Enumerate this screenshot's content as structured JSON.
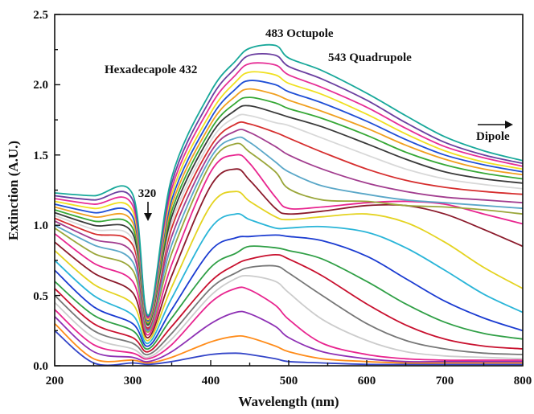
{
  "chart_data": {
    "type": "line",
    "xlabel": "Wavelength (nm)",
    "ylabel": "Extinction (A.U.)",
    "xlim": [
      200,
      800
    ],
    "ylim": [
      0,
      2.5
    ],
    "x_ticks": [
      "200",
      "300",
      "400",
      "500",
      "600",
      "700",
      "800"
    ],
    "y_ticks": [
      "0.0",
      "0.5",
      "1.0",
      "1.5",
      "2.0",
      "2.5"
    ],
    "grid": false,
    "legend": "none",
    "annotations": {
      "hexadecapole": "Hexadecapole 432",
      "octupole": "483 Octupole",
      "quadrupole": "543 Quadrupole",
      "dipole": "Dipole",
      "dip": "320"
    },
    "series_x": [
      200,
      250,
      300,
      320,
      350,
      400,
      432,
      450,
      483,
      500,
      543,
      600,
      650,
      700,
      750,
      800
    ],
    "series": [
      {
        "color": "#3345c8",
        "values": [
          0.25,
          0.02,
          0.02,
          0.01,
          0.03,
          0.08,
          0.09,
          0.08,
          0.05,
          0.03,
          0.02,
          0.01,
          0.01,
          0.01,
          0.01,
          0.01
        ]
      },
      {
        "color": "#ff8c1a",
        "values": [
          0.3,
          0.05,
          0.04,
          0.02,
          0.06,
          0.17,
          0.21,
          0.2,
          0.14,
          0.1,
          0.05,
          0.03,
          0.02,
          0.02,
          0.02,
          0.02
        ]
      },
      {
        "color": "#8e30b4",
        "values": [
          0.35,
          0.1,
          0.06,
          0.03,
          0.1,
          0.3,
          0.38,
          0.37,
          0.28,
          0.2,
          0.1,
          0.05,
          0.03,
          0.03,
          0.03,
          0.03
        ]
      },
      {
        "color": "#e8258f",
        "values": [
          0.4,
          0.15,
          0.09,
          0.05,
          0.15,
          0.45,
          0.55,
          0.54,
          0.43,
          0.33,
          0.16,
          0.08,
          0.05,
          0.04,
          0.04,
          0.04
        ]
      },
      {
        "color": "#cccccc",
        "values": [
          0.45,
          0.2,
          0.12,
          0.06,
          0.19,
          0.5,
          0.62,
          0.64,
          0.6,
          0.52,
          0.33,
          0.18,
          0.1,
          0.07,
          0.06,
          0.05
        ]
      },
      {
        "color": "#777777",
        "values": [
          0.5,
          0.25,
          0.16,
          0.08,
          0.23,
          0.55,
          0.66,
          0.7,
          0.71,
          0.66,
          0.5,
          0.3,
          0.18,
          0.12,
          0.09,
          0.08
        ]
      },
      {
        "color": "#c8102e",
        "values": [
          0.55,
          0.3,
          0.2,
          0.1,
          0.28,
          0.6,
          0.72,
          0.76,
          0.79,
          0.76,
          0.64,
          0.44,
          0.29,
          0.19,
          0.14,
          0.12
        ]
      },
      {
        "color": "#2f9f45",
        "values": [
          0.6,
          0.36,
          0.25,
          0.12,
          0.34,
          0.7,
          0.8,
          0.85,
          0.84,
          0.82,
          0.76,
          0.6,
          0.44,
          0.31,
          0.23,
          0.19
        ]
      },
      {
        "color": "#1a3bd1",
        "values": [
          0.68,
          0.42,
          0.3,
          0.14,
          0.4,
          0.82,
          0.91,
          0.92,
          0.93,
          0.92,
          0.89,
          0.78,
          0.62,
          0.46,
          0.34,
          0.25
        ]
      },
      {
        "color": "#2ab5d8",
        "values": [
          0.75,
          0.5,
          0.36,
          0.16,
          0.48,
          0.98,
          1.08,
          1.04,
          0.98,
          0.98,
          0.99,
          0.95,
          0.84,
          0.68,
          0.51,
          0.38
        ]
      },
      {
        "color": "#e4d320",
        "values": [
          0.82,
          0.58,
          0.44,
          0.18,
          0.56,
          1.14,
          1.24,
          1.17,
          1.06,
          1.04,
          1.06,
          1.08,
          1.02,
          0.88,
          0.7,
          0.55
        ]
      },
      {
        "color": "#8b1a2b",
        "values": [
          0.88,
          0.66,
          0.52,
          0.2,
          0.64,
          1.28,
          1.4,
          1.32,
          1.12,
          1.08,
          1.1,
          1.14,
          1.14,
          1.08,
          0.97,
          0.85
        ]
      },
      {
        "color": "#e8258f",
        "values": [
          0.94,
          0.73,
          0.6,
          0.22,
          0.72,
          1.38,
          1.5,
          1.44,
          1.2,
          1.12,
          1.13,
          1.16,
          1.17,
          1.15,
          1.08,
          1.01
        ]
      },
      {
        "color": "#9aa63a",
        "values": [
          0.98,
          0.8,
          0.68,
          0.24,
          0.8,
          1.44,
          1.58,
          1.52,
          1.38,
          1.26,
          1.18,
          1.17,
          1.14,
          1.13,
          1.11,
          1.08
        ]
      },
      {
        "color": "#5aa7c8",
        "values": [
          1.0,
          0.86,
          0.74,
          0.25,
          0.86,
          1.48,
          1.62,
          1.59,
          1.45,
          1.38,
          1.28,
          1.22,
          1.18,
          1.16,
          1.14,
          1.12
        ]
      },
      {
        "color": "#a23d8f",
        "values": [
          1.03,
          0.9,
          0.8,
          0.26,
          0.92,
          1.52,
          1.67,
          1.66,
          1.56,
          1.5,
          1.4,
          1.3,
          1.24,
          1.2,
          1.18,
          1.16
        ]
      },
      {
        "color": "#d62e2e",
        "values": [
          1.05,
          0.94,
          0.86,
          0.27,
          0.98,
          1.56,
          1.72,
          1.72,
          1.66,
          1.62,
          1.52,
          1.4,
          1.32,
          1.27,
          1.24,
          1.22
        ]
      },
      {
        "color": "#d8d8d8",
        "values": [
          1.07,
          0.97,
          0.9,
          0.28,
          1.02,
          1.6,
          1.77,
          1.78,
          1.73,
          1.71,
          1.62,
          1.5,
          1.4,
          1.33,
          1.29,
          1.26
        ]
      },
      {
        "color": "#3a3a3a",
        "values": [
          1.09,
          1.0,
          0.94,
          0.29,
          1.06,
          1.64,
          1.82,
          1.85,
          1.8,
          1.77,
          1.7,
          1.58,
          1.47,
          1.38,
          1.33,
          1.3
        ]
      },
      {
        "color": "#36a836",
        "values": [
          1.11,
          1.03,
          0.98,
          0.3,
          1.1,
          1.68,
          1.87,
          1.91,
          1.87,
          1.83,
          1.76,
          1.64,
          1.52,
          1.43,
          1.37,
          1.33
        ]
      },
      {
        "color": "#f0a020",
        "values": [
          1.13,
          1.06,
          1.02,
          0.31,
          1.14,
          1.72,
          1.92,
          1.97,
          1.93,
          1.89,
          1.81,
          1.69,
          1.57,
          1.47,
          1.4,
          1.36
        ]
      },
      {
        "color": "#1f4fd6",
        "values": [
          1.15,
          1.09,
          1.06,
          0.32,
          1.18,
          1.76,
          1.97,
          2.03,
          2.0,
          1.95,
          1.87,
          1.74,
          1.61,
          1.5,
          1.43,
          1.38
        ]
      },
      {
        "color": "#f0e020",
        "values": [
          1.17,
          1.12,
          1.1,
          0.33,
          1.22,
          1.8,
          2.02,
          2.09,
          2.07,
          2.01,
          1.93,
          1.79,
          1.65,
          1.53,
          1.45,
          1.4
        ]
      },
      {
        "color": "#e62e96",
        "values": [
          1.19,
          1.15,
          1.14,
          0.34,
          1.26,
          1.85,
          2.07,
          2.15,
          2.14,
          2.07,
          1.98,
          1.84,
          1.69,
          1.56,
          1.48,
          1.42
        ]
      },
      {
        "color": "#6b3fa0",
        "values": [
          1.21,
          1.18,
          1.18,
          0.35,
          1.3,
          1.9,
          2.12,
          2.21,
          2.21,
          2.13,
          2.04,
          1.89,
          1.73,
          1.59,
          1.5,
          1.44
        ]
      },
      {
        "color": "#18a89a",
        "values": [
          1.23,
          1.21,
          1.22,
          0.36,
          1.34,
          1.95,
          2.17,
          2.26,
          2.28,
          2.19,
          2.1,
          1.94,
          1.78,
          1.63,
          1.53,
          1.46
        ]
      }
    ]
  }
}
